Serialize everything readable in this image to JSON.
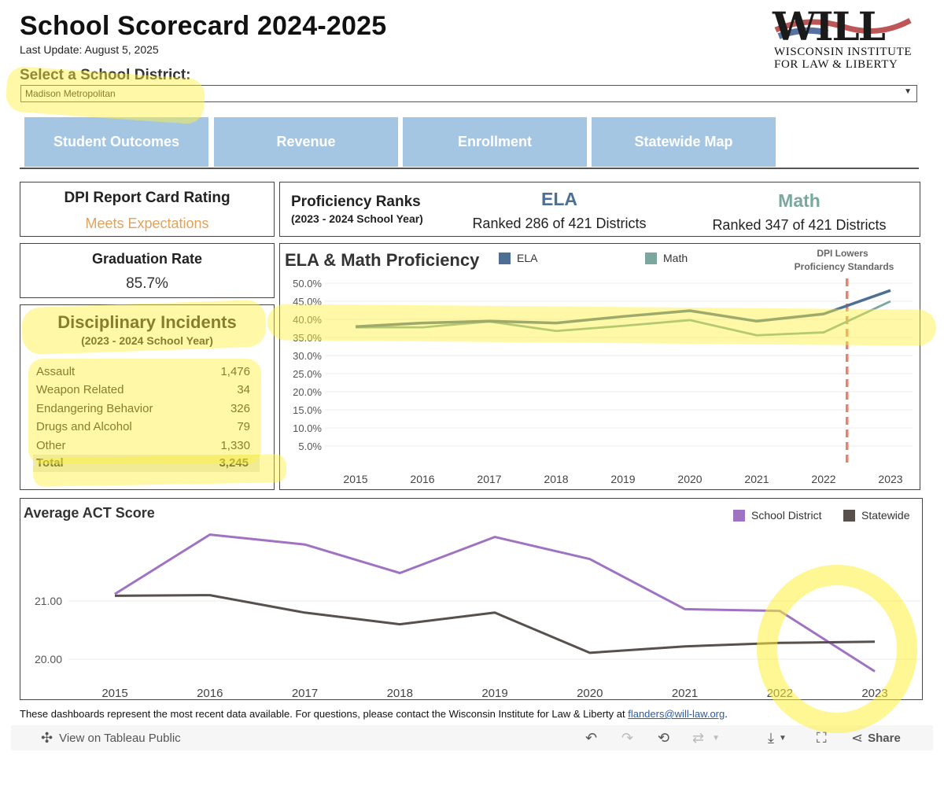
{
  "header": {
    "title": "School Scorecard 2024-2025",
    "last_update": "Last Update: August 5, 2025",
    "select_label": "Select a School District:",
    "selected_district": "Madison Metropolitan"
  },
  "logo": {
    "mark": "WILL",
    "line1": "WISCONSIN INSTITUTE",
    "line2": "FOR LAW & LIBERTY"
  },
  "tabs": [
    {
      "label": "Student Outcomes"
    },
    {
      "label": "Revenue"
    },
    {
      "label": "Enrollment"
    },
    {
      "label": "Statewide Map"
    }
  ],
  "dpi": {
    "title": "DPI Report Card Rating",
    "value": "Meets Expectations"
  },
  "proficiency_ranks": {
    "title": "Proficiency Ranks",
    "subtitle": "(2023 - 2024 School Year)",
    "ela_label": "ELA",
    "ela_rank": "Ranked 286 of 421 Districts",
    "math_label": "Math",
    "math_rank": "Ranked 347 of 421 Districts"
  },
  "graduation": {
    "title": "Graduation Rate",
    "value": "85.7%"
  },
  "disciplinary": {
    "title": "Disciplinary Incidents",
    "subtitle": "(2023 - 2024 School Year)",
    "rows": [
      {
        "label": "Assault",
        "value": "1,476"
      },
      {
        "label": "Weapon Related",
        "value": "34"
      },
      {
        "label": "Endangering Behavior",
        "value": "326"
      },
      {
        "label": "Drugs and Alcohol",
        "value": "79"
      },
      {
        "label": "Other",
        "value": "1,330"
      }
    ],
    "total_label": "Total",
    "total_value": "3,245"
  },
  "colors": {
    "tab_bg": "#a4c6e3",
    "ela": "#4e6f94",
    "math": "#7aa89e",
    "district": "#9f73c2",
    "statewide": "#57504d",
    "rating": "#e0a35c",
    "marker": "#e58272",
    "highlight": "#fff13c"
  },
  "chart_data": [
    {
      "type": "line",
      "title": "ELA & Math Proficiency",
      "x": [
        2015,
        2016,
        2017,
        2018,
        2019,
        2020,
        2021,
        2022,
        2023
      ],
      "yticks": [
        "5.0%",
        "10.0%",
        "15.0%",
        "20.0%",
        "25.0%",
        "30.0%",
        "35.0%",
        "40.0%",
        "45.0%",
        "50.0%"
      ],
      "ylim": [
        0,
        50
      ],
      "series": [
        {
          "name": "ELA",
          "values": [
            38.0,
            39.0,
            39.5,
            39.0,
            40.8,
            42.4,
            39.5,
            41.5,
            48.0
          ]
        },
        {
          "name": "Math",
          "values": [
            37.8,
            37.8,
            39.4,
            36.8,
            38.2,
            39.8,
            35.6,
            36.4,
            45.0
          ]
        }
      ],
      "annotation": {
        "text_line1": "DPI Lowers",
        "text_line2": "Proficiency Standards",
        "x": 2022.35
      },
      "legend": "top",
      "grid": true
    },
    {
      "type": "line",
      "title": "Average ACT Score",
      "x": [
        2015,
        2016,
        2017,
        2018,
        2019,
        2020,
        2021,
        2022,
        2023
      ],
      "yticks": [
        "20.00",
        "21.00"
      ],
      "ylim": [
        19.6,
        22.0
      ],
      "series": [
        {
          "name": "School District",
          "values": [
            21.12,
            22.14,
            21.97,
            21.48,
            22.1,
            21.72,
            20.86,
            20.83,
            19.79
          ]
        },
        {
          "name": "Statewide",
          "values": [
            21.09,
            21.1,
            20.8,
            20.6,
            20.8,
            20.11,
            20.22,
            20.28,
            20.3
          ]
        }
      ],
      "legend": "top-right",
      "grid": true
    }
  ],
  "footer": {
    "text": "These dashboards represent the most recent data available. For questions, please contact the Wisconsin Institute for Law & Liberty at",
    "email": "flanders@will-law.org",
    "period": "."
  },
  "toolbar": {
    "view_label": "View on Tableau Public",
    "share_label": "Share"
  }
}
